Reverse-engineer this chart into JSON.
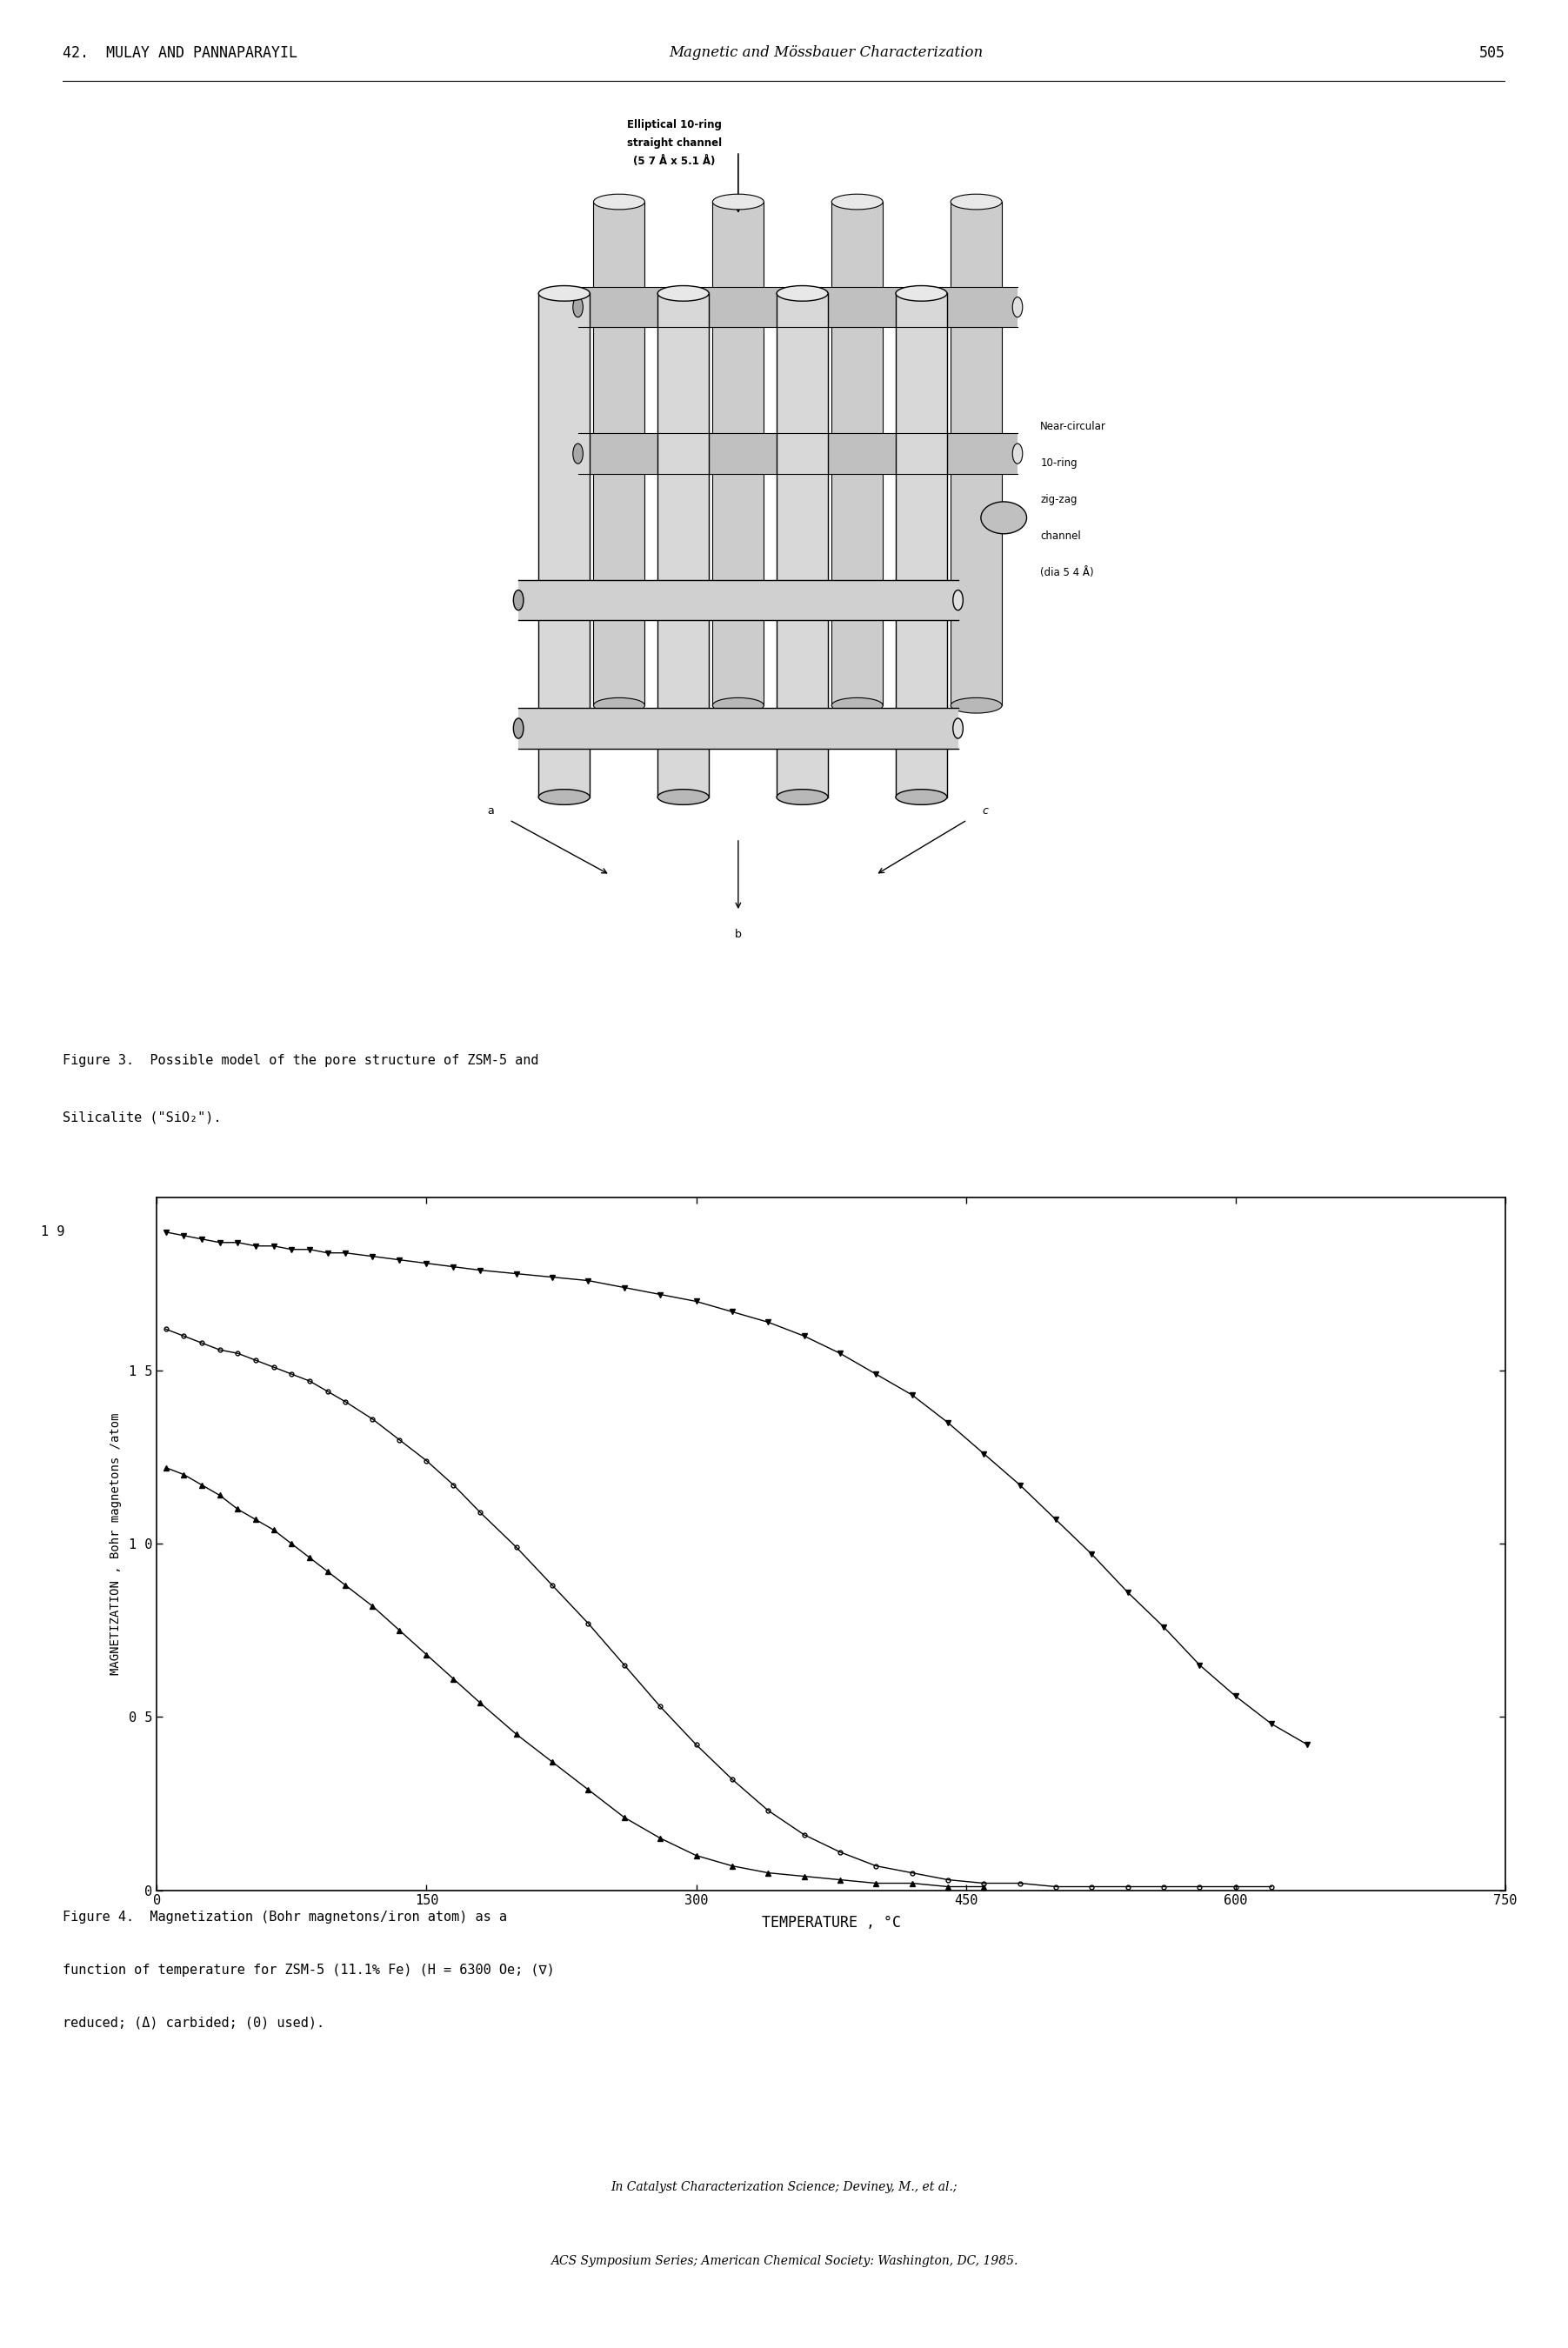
{
  "page_header_left": "42.  MULAY AND PANNAPARAYIL",
  "page_header_center": "Magnetic and Mössbauer Characterization",
  "page_number": "505",
  "fig3_caption_line1": "Figure 3.  Possible model of the pore structure of ZSM-5 and",
  "fig3_caption_line2": "Silicalite (\"SiO₂\").",
  "fig4_caption_line1": "Figure 4.  Magnetization (Bohr magnetons/iron atom) as a",
  "fig4_caption_line2": "function of temperature for ZSM-5 (11.1% Fe) (H = 6300 Oe; (∇)",
  "fig4_caption_line3": "reduced; (Δ) carbided; (0) used).",
  "footer_line1": "In Catalyst Characterization Science; Deviney, M., et al.;",
  "footer_line2": "ACS Symposium Series; American Chemical Society: Washington, DC, 1985.",
  "xlabel": "TEMPERATURE , °C",
  "ylabel": "MAGNETIZATION , Bohr magnetons /atom",
  "xlim": [
    0,
    750
  ],
  "ylim": [
    0,
    2.0
  ],
  "xticks": [
    0,
    150,
    300,
    450,
    600,
    750
  ],
  "yticks": [
    0,
    0.5,
    1.0,
    1.5
  ],
  "ytick_labels": [
    "0",
    "0 5",
    "1 0",
    "1 5"
  ],
  "curve_V_x": [
    5,
    15,
    25,
    35,
    45,
    55,
    65,
    75,
    85,
    95,
    105,
    120,
    135,
    150,
    165,
    180,
    200,
    220,
    240,
    260,
    280,
    300,
    320,
    340,
    360,
    380,
    400,
    420,
    440,
    460,
    480,
    500,
    520,
    540,
    560,
    580,
    600,
    620,
    640
  ],
  "curve_V_y": [
    1.9,
    1.89,
    1.88,
    1.87,
    1.87,
    1.86,
    1.86,
    1.85,
    1.85,
    1.84,
    1.84,
    1.83,
    1.82,
    1.81,
    1.8,
    1.79,
    1.78,
    1.77,
    1.76,
    1.74,
    1.72,
    1.7,
    1.67,
    1.64,
    1.6,
    1.55,
    1.49,
    1.43,
    1.35,
    1.26,
    1.17,
    1.07,
    0.97,
    0.86,
    0.76,
    0.65,
    0.56,
    0.48,
    0.42
  ],
  "curve_A_x": [
    5,
    15,
    25,
    35,
    45,
    55,
    65,
    75,
    85,
    95,
    105,
    120,
    135,
    150,
    165,
    180,
    200,
    220,
    240,
    260,
    280,
    300,
    320,
    340,
    360,
    380,
    400,
    420,
    440,
    460
  ],
  "curve_A_y": [
    1.22,
    1.2,
    1.17,
    1.14,
    1.1,
    1.07,
    1.04,
    1.0,
    0.96,
    0.92,
    0.88,
    0.82,
    0.75,
    0.68,
    0.61,
    0.54,
    0.45,
    0.37,
    0.29,
    0.21,
    0.15,
    0.1,
    0.07,
    0.05,
    0.04,
    0.03,
    0.02,
    0.02,
    0.01,
    0.01
  ],
  "curve_O_x": [
    5,
    15,
    25,
    35,
    45,
    55,
    65,
    75,
    85,
    95,
    105,
    120,
    135,
    150,
    165,
    180,
    200,
    220,
    240,
    260,
    280,
    300,
    320,
    340,
    360,
    380,
    400,
    420,
    440,
    460,
    480,
    500,
    520,
    540,
    560,
    580,
    600,
    620
  ],
  "curve_O_y": [
    1.62,
    1.6,
    1.58,
    1.56,
    1.55,
    1.53,
    1.51,
    1.49,
    1.47,
    1.44,
    1.41,
    1.36,
    1.3,
    1.24,
    1.17,
    1.09,
    0.99,
    0.88,
    0.77,
    0.65,
    0.53,
    0.42,
    0.32,
    0.23,
    0.16,
    0.11,
    0.07,
    0.05,
    0.03,
    0.02,
    0.02,
    0.01,
    0.01,
    0.01,
    0.01,
    0.01,
    0.01,
    0.01
  ],
  "bg_color": "#ffffff",
  "line_color": "#000000",
  "fig3_label_elliptical": "Elliptical 10-ring\nstraight channel\n(5 7 Å x 5.1 Å)",
  "fig3_label_near_circular": "Near-circular\n10-ring\nzig-zag\nchannel\n(dia 5 4 Å)",
  "fig3_arrow_label_a": "a",
  "fig3_arrow_label_b": "b",
  "fig3_arrow_label_c": "c"
}
